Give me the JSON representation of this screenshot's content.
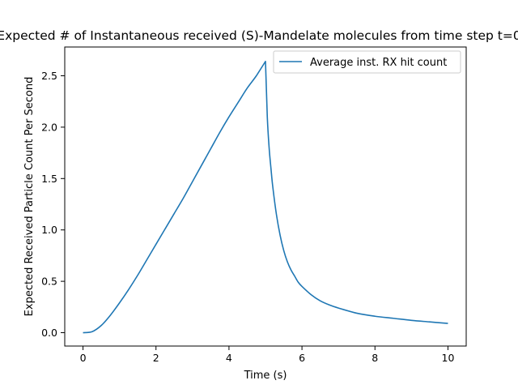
{
  "chart_data": {
    "type": "line",
    "title": "Expected # of Instantaneous received (S)-Mandelate molecules from time step t=0",
    "xlabel": "Time (s)",
    "ylabel": "Expected Received Particle Count Per Second",
    "xlim": [
      -0.5,
      10.5
    ],
    "ylim": [
      -0.13,
      2.78
    ],
    "xticks": [
      0,
      2,
      4,
      6,
      8,
      10
    ],
    "xtick_labels": [
      "0",
      "2",
      "4",
      "6",
      "8",
      "10"
    ],
    "yticks": [
      0.0,
      0.5,
      1.0,
      1.5,
      2.0,
      2.5
    ],
    "ytick_labels": [
      "0.0",
      "0.5",
      "1.0",
      "1.5",
      "2.0",
      "2.5"
    ],
    "grid": false,
    "legend_position": "top-right",
    "series": [
      {
        "name": "Average inst. RX hit count",
        "color": "#1f77b4",
        "x": [
          0,
          0.25,
          0.5,
          0.75,
          1.0,
          1.25,
          1.5,
          1.75,
          2.0,
          2.25,
          2.5,
          2.75,
          3.0,
          3.25,
          3.5,
          3.75,
          4.0,
          4.25,
          4.5,
          4.75,
          5.0,
          5.05,
          5.1,
          5.15,
          5.2,
          5.3,
          5.4,
          5.5,
          5.6,
          5.7,
          5.8,
          5.9,
          6.0,
          6.25,
          6.5,
          6.75,
          7.0,
          7.5,
          8.0,
          8.5,
          9.0,
          9.5,
          10.0
        ],
        "y": [
          0.0,
          0.01,
          0.07,
          0.17,
          0.29,
          0.42,
          0.56,
          0.71,
          0.86,
          1.01,
          1.16,
          1.31,
          1.47,
          1.63,
          1.79,
          1.95,
          2.1,
          2.24,
          2.38,
          2.5,
          2.64,
          2.1,
          1.8,
          1.6,
          1.42,
          1.15,
          0.95,
          0.8,
          0.69,
          0.61,
          0.55,
          0.49,
          0.45,
          0.37,
          0.31,
          0.27,
          0.24,
          0.19,
          0.16,
          0.14,
          0.12,
          0.105,
          0.09
        ]
      }
    ]
  }
}
